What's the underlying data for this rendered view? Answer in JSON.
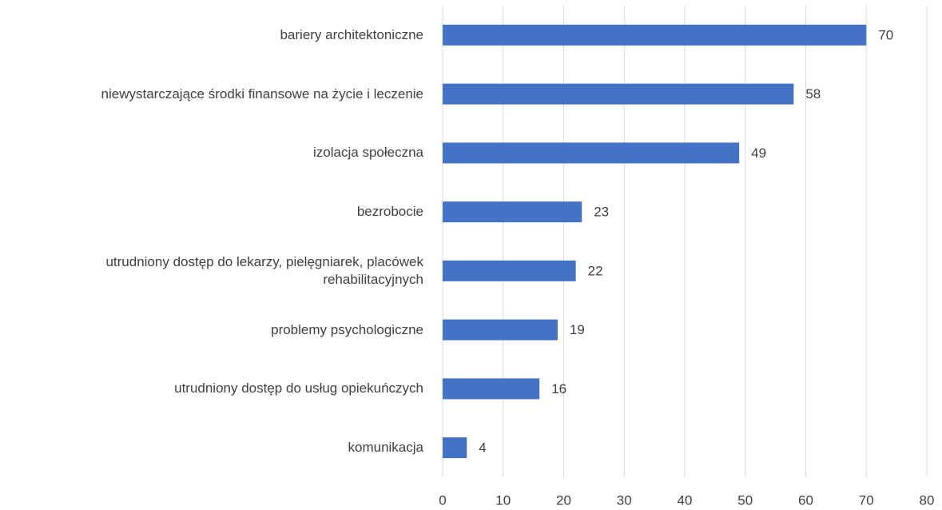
{
  "chart_data": {
    "type": "bar",
    "orientation": "horizontal",
    "categories": [
      "bariery architektoniczne",
      "niewystarczające środki finansowe na życie i leczenie",
      "izolacja społeczna",
      "bezrobocie",
      "utrudniony dostęp do lekarzy, pielęgniarek, placówek rehabilitacyjnych",
      "problemy psychologiczne",
      "utrudniony dostęp do usług opiekuńczych",
      "komunikacja"
    ],
    "values": [
      70,
      58,
      49,
      23,
      22,
      19,
      16,
      4
    ],
    "color": "#4472c4",
    "xlim": [
      0,
      80
    ],
    "xticks": [
      0,
      10,
      20,
      30,
      40,
      50,
      60,
      70,
      80
    ],
    "grid": true
  }
}
